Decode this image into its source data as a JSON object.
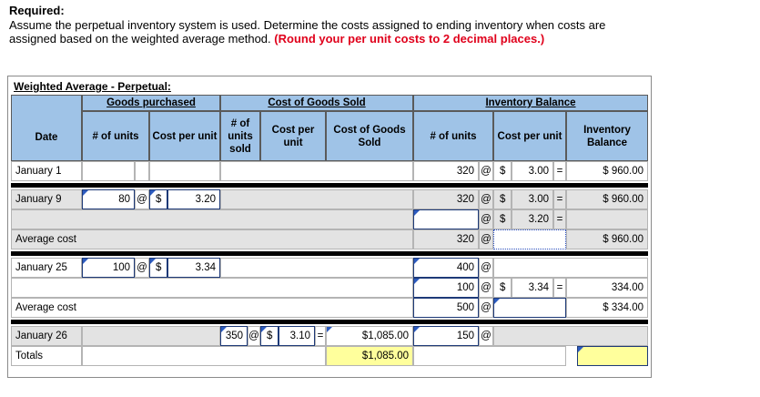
{
  "required": {
    "title": "Required:",
    "line1": "Assume the perpetual inventory system is used. Determine the costs assigned to ending inventory when costs are",
    "line2": "assigned based on the weighted average method.",
    "note": "(Round your per unit costs to 2 decimal places.)"
  },
  "worksheet_title": "Weighted Average - Perpetual:",
  "headers": {
    "goods_purchased": "Goods purchased",
    "cost_of_goods_sold": "Cost of Goods Sold",
    "inventory_balance": "Inventory Balance",
    "date": "Date",
    "num_units": "# of units",
    "cost_per_unit": "Cost per unit",
    "num_units_sold": "# of units sold",
    "cost_of_goods_sold_col": "Cost of Goods Sold",
    "inv_num_units": "# of units",
    "inv_cost_per_unit": "Cost per unit",
    "inventory_balance_col": "Inventory Balance"
  },
  "symbols": {
    "at": "@",
    "dollar": "$",
    "equals": "="
  },
  "rows": {
    "jan1": {
      "date": "January 1",
      "inv_units": "320",
      "inv_cost": "3.00",
      "inv_balance": "$ 960.00"
    },
    "jan9": {
      "date": "January 9",
      "purch_units": "80",
      "purch_cost": "3.20",
      "inv_units_1": "320",
      "inv_cost_1": "3.00",
      "inv_balance_1": "$ 960.00",
      "inv_cost_2": "3.20"
    },
    "avg1": {
      "date": "Average cost",
      "inv_units": "320",
      "inv_balance": "$ 960.00"
    },
    "jan25": {
      "date": "January 25",
      "purch_units": "100",
      "purch_cost": "3.34",
      "inv_units_1": "400",
      "inv_units_2": "100",
      "inv_cost_2": "3.34",
      "inv_balance_2": "334.00"
    },
    "avg2": {
      "date": "Average cost",
      "inv_units": "500",
      "inv_balance": "$ 334.00"
    },
    "jan26": {
      "date": "January 26",
      "sold_units": "350",
      "sold_cost": "3.10",
      "cogs": "$1,085.00",
      "inv_units": "150"
    },
    "totals": {
      "date": "Totals",
      "cogs": "$1,085.00"
    }
  }
}
